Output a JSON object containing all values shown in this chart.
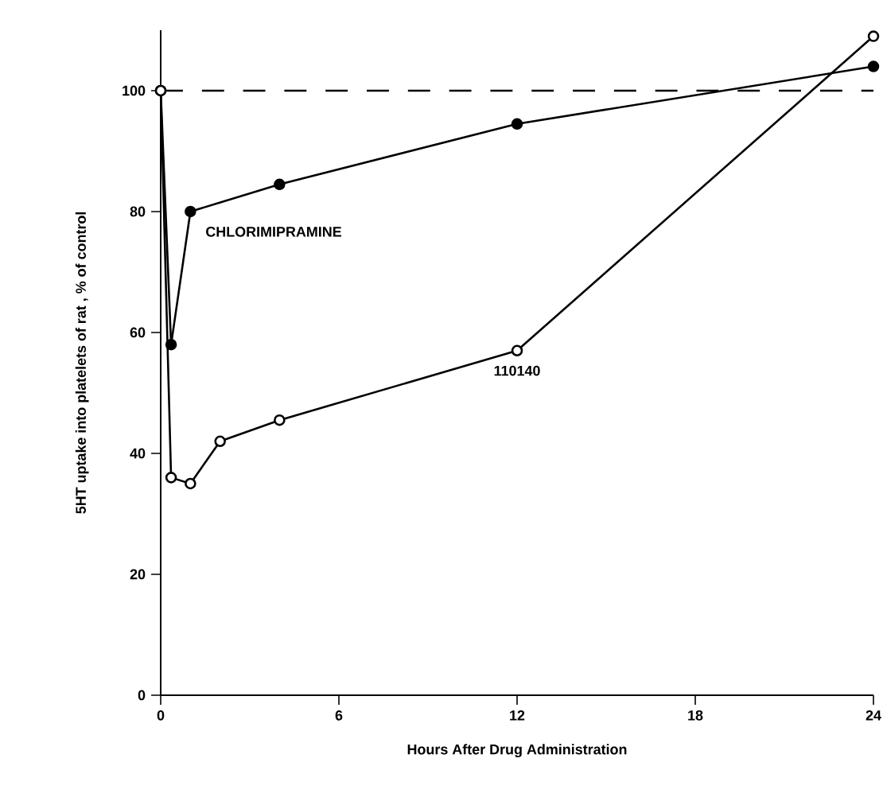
{
  "chart_data": {
    "type": "line",
    "xlabel": "Hours After Drug Administration",
    "ylabel": "5HT uptake into platelets of rat , % of control",
    "xlim": [
      0,
      24
    ],
    "ylim": [
      0,
      110
    ],
    "xticks": [
      0,
      6,
      12,
      18,
      24
    ],
    "yticks": [
      0,
      20,
      40,
      60,
      80,
      100
    ],
    "legend": false,
    "grid": false,
    "series": [
      {
        "name": "CHLORIMIPRAMINE",
        "color": "#000000",
        "marker": "circle",
        "x": [
          0,
          0.35,
          1,
          4,
          12,
          24
        ],
        "values": [
          100,
          58,
          80,
          84.5,
          94.5,
          104
        ]
      },
      {
        "name": "110140",
        "color": "#000000",
        "marker": "circle",
        "x": [
          0,
          0.35,
          1,
          2,
          4,
          12,
          24
        ],
        "values": [
          100,
          36,
          35,
          42,
          45.5,
          57,
          109
        ]
      }
    ],
    "ref_lines": [
      {
        "axis": "y",
        "value": 100,
        "line_style": "dashed",
        "color": "#000000"
      }
    ]
  }
}
